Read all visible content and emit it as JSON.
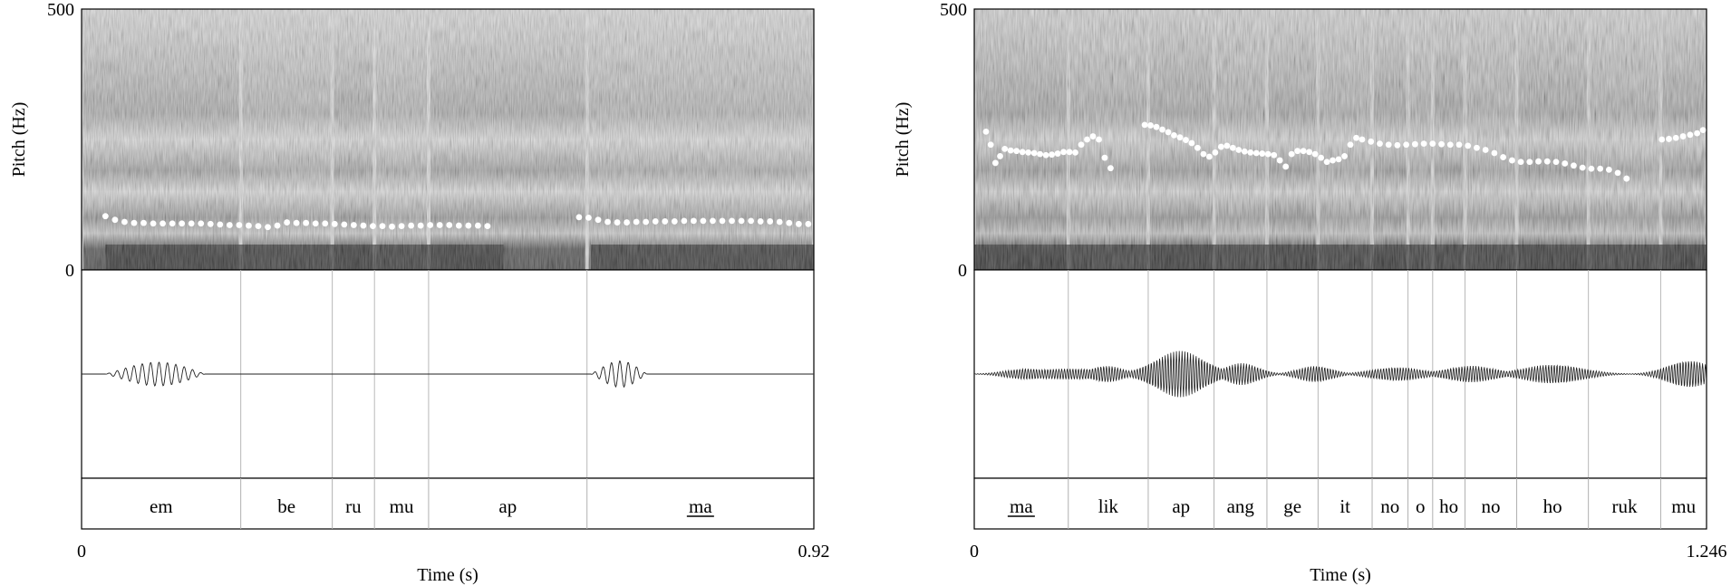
{
  "chart_data": [
    {
      "type": "spectrogram",
      "ylabel": "Pitch (Hz)",
      "xlabel": "Time (s)",
      "ylim": [
        0,
        500
      ],
      "xlim": [
        0,
        0.92
      ],
      "y_tick_labels": [
        "0",
        "500"
      ],
      "x_tick_labels": [
        "0",
        "0.92"
      ],
      "pitch": {
        "color": "#ffffff",
        "segments": [
          {
            "t": [
              0.03,
              0.042,
              0.054,
              0.066,
              0.078,
              0.09,
              0.102,
              0.114,
              0.126,
              0.138,
              0.15,
              0.162,
              0.174,
              0.186,
              0.198,
              0.21,
              0.222,
              0.234,
              0.246,
              0.258,
              0.27,
              0.282,
              0.294,
              0.306,
              0.318,
              0.33,
              0.342,
              0.354,
              0.366,
              0.378,
              0.39,
              0.402,
              0.414,
              0.426,
              0.438,
              0.45,
              0.462,
              0.474,
              0.486,
              0.498,
              0.51
            ],
            "f0": [
              103,
              96,
              92,
              90,
              90,
              89,
              89,
              89,
              89,
              89,
              89,
              88,
              87,
              86,
              86,
              85,
              84,
              82,
              85,
              91,
              90,
              90,
              89,
              89,
              88,
              87,
              86,
              85,
              84,
              84,
              83,
              84,
              85,
              85,
              86,
              86,
              86,
              85,
              85,
              85,
              84
            ]
          },
          {
            "t": [
              0.625,
              0.637,
              0.649,
              0.661,
              0.673,
              0.685,
              0.697,
              0.709,
              0.721,
              0.733,
              0.745,
              0.757,
              0.769,
              0.781,
              0.793,
              0.805,
              0.817,
              0.829,
              0.841,
              0.853,
              0.865,
              0.877,
              0.889,
              0.901,
              0.913
            ],
            "f0": [
              101,
              100,
              96,
              92,
              91,
              91,
              92,
              92,
              93,
              93,
              93,
              94,
              94,
              94,
              94,
              94,
              94,
              94,
              94,
              93,
              93,
              92,
              90,
              88,
              88
            ]
          }
        ]
      },
      "waveform": {
        "segments": [
          {
            "t0": 0.03,
            "t1": 0.53,
            "amp": 0.45
          },
          {
            "t0": 0.64,
            "t1": 0.92,
            "amp": 0.5
          }
        ]
      },
      "tier": [
        {
          "label": "em",
          "t0": 0.0,
          "t1": 0.2,
          "underline": false
        },
        {
          "label": "be",
          "t0": 0.2,
          "t1": 0.315,
          "underline": false
        },
        {
          "label": "ru",
          "t0": 0.315,
          "t1": 0.368,
          "underline": false
        },
        {
          "label": "mu",
          "t0": 0.368,
          "t1": 0.436,
          "underline": false
        },
        {
          "label": "ap",
          "t0": 0.436,
          "t1": 0.635,
          "underline": false
        },
        {
          "label": "ma",
          "t0": 0.635,
          "t1": 0.92,
          "underline": true
        }
      ]
    },
    {
      "type": "spectrogram",
      "ylabel": "Pitch (Hz)",
      "xlabel": "Time (s)",
      "ylim": [
        0,
        500
      ],
      "xlim": [
        0,
        1.246
      ],
      "y_tick_labels": [
        "0",
        "500"
      ],
      "x_tick_labels": [
        "0",
        "1.246"
      ],
      "pitch": {
        "color": "#ffffff",
        "segments": [
          {
            "t": [
              0.02,
              0.028,
              0.036,
              0.044
            ],
            "f0": [
              265,
              240,
              205,
              218
            ]
          },
          {
            "t": [
              0.052,
              0.062,
              0.072,
              0.082,
              0.092,
              0.102,
              0.112,
              0.122,
              0.132,
              0.142,
              0.152,
              0.162,
              0.172,
              0.182,
              0.192,
              0.202,
              0.212,
              0.222,
              0.232
            ],
            "f0": [
              232,
              229,
              228,
              226,
              225,
              224,
              222,
              220,
              221,
              223,
              226,
              226,
              225,
              240,
              250,
              256,
              250,
              215,
              195
            ]
          },
          {
            "t": [
              0.29,
              0.3,
              0.31,
              0.32,
              0.33,
              0.34,
              0.35,
              0.36,
              0.37,
              0.38,
              0.39,
              0.4,
              0.41,
              0.42,
              0.43,
              0.44,
              0.45,
              0.46,
              0.47,
              0.48,
              0.49,
              0.5,
              0.51,
              0.52,
              0.53,
              0.54,
              0.55,
              0.56,
              0.57,
              0.58,
              0.59,
              0.6,
              0.61,
              0.62,
              0.63,
              0.64,
              0.65
            ],
            "f0": [
              278,
              277,
              274,
              269,
              264,
              258,
              254,
              249,
              243,
              234,
              222,
              217,
              225,
              236,
              238,
              234,
              230,
              227,
              225,
              224,
              223,
              222,
              220,
              210,
              198,
              222,
              228,
              228,
              226,
              222,
              215,
              207,
              210,
              212,
              218,
              240,
              253
            ]
          },
          {
            "t": [
              0.66,
              0.675,
              0.69,
              0.705,
              0.72,
              0.735,
              0.75,
              0.765,
              0.78,
              0.795,
              0.81,
              0.825,
              0.84,
              0.855,
              0.87,
              0.885,
              0.9,
              0.915,
              0.93,
              0.945,
              0.96,
              0.975,
              0.99,
              1.005,
              1.02,
              1.035,
              1.05,
              1.065,
              1.08,
              1.095,
              1.11
            ],
            "f0": [
              250,
              246,
              242,
              240,
              239,
              240,
              241,
              242,
              242,
              241,
              240,
              240,
              238,
              234,
              230,
              224,
              216,
              210,
              207,
              207,
              208,
              208,
              207,
              204,
              200,
              196,
              194,
              194,
              192,
              186,
              175
            ]
          },
          {
            "t": [
              1.17,
              1.182,
              1.194,
              1.206,
              1.218,
              1.23,
              1.24
            ],
            "f0": [
              250,
              251,
              253,
              256,
              259,
              262,
              268
            ]
          }
        ]
      },
      "waveform": {
        "segments": [
          {
            "t0": 0.0,
            "t1": 1.246,
            "amp": 0.2
          }
        ],
        "bursts": [
          {
            "t": 0.09,
            "w": 0.05,
            "a": 0.2
          },
          {
            "t": 0.225,
            "w": 0.04,
            "a": 0.3
          },
          {
            "t": 0.35,
            "w": 0.06,
            "a": 0.85
          },
          {
            "t": 0.455,
            "w": 0.04,
            "a": 0.4
          },
          {
            "t": 0.58,
            "w": 0.04,
            "a": 0.3
          },
          {
            "t": 0.72,
            "w": 0.06,
            "a": 0.25
          },
          {
            "t": 0.845,
            "w": 0.06,
            "a": 0.3
          },
          {
            "t": 0.985,
            "w": 0.07,
            "a": 0.35
          },
          {
            "t": 1.215,
            "w": 0.05,
            "a": 0.5
          }
        ]
      },
      "tier": [
        {
          "label": "ma",
          "t0": 0.0,
          "t1": 0.16,
          "underline": true
        },
        {
          "label": "lik",
          "t0": 0.16,
          "t1": 0.296,
          "underline": false
        },
        {
          "label": "ap",
          "t0": 0.296,
          "t1": 0.408,
          "underline": false
        },
        {
          "label": "ang",
          "t0": 0.408,
          "t1": 0.498,
          "underline": false
        },
        {
          "label": "ge",
          "t0": 0.498,
          "t1": 0.585,
          "underline": false
        },
        {
          "label": "it",
          "t0": 0.585,
          "t1": 0.677,
          "underline": false
        },
        {
          "label": "no",
          "t0": 0.677,
          "t1": 0.738,
          "underline": false
        },
        {
          "label": "o",
          "t0": 0.738,
          "t1": 0.78,
          "underline": false
        },
        {
          "label": "ho",
          "t0": 0.78,
          "t1": 0.835,
          "underline": false
        },
        {
          "label": "no",
          "t0": 0.835,
          "t1": 0.923,
          "underline": false
        },
        {
          "label": "ho",
          "t0": 0.923,
          "t1": 1.045,
          "underline": false
        },
        {
          "label": "ruk",
          "t0": 1.045,
          "t1": 1.168,
          "underline": false
        },
        {
          "label": "mu",
          "t0": 1.168,
          "t1": 1.246,
          "underline": false
        }
      ]
    }
  ]
}
